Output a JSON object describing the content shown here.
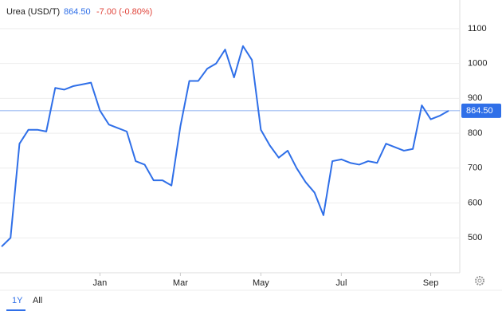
{
  "chart_data": {
    "type": "line",
    "title": "Urea (USD/T)",
    "price": {
      "value": 864.5,
      "label": "864.50"
    },
    "change": "-7.00 (-0.80%)",
    "ranges": [
      "1Y",
      "All"
    ],
    "categories": [
      null,
      null,
      null,
      null,
      null,
      null,
      null,
      null,
      null,
      null,
      null,
      "Jan",
      null,
      null,
      null,
      null,
      null,
      null,
      null,
      null,
      "Mar",
      null,
      null,
      null,
      null,
      null,
      null,
      null,
      null,
      "May",
      null,
      null,
      null,
      null,
      null,
      null,
      null,
      null,
      "Jul",
      null,
      null,
      null,
      null,
      null,
      null,
      null,
      null,
      null,
      "Sep",
      null,
      null
    ],
    "series": [
      {
        "name": "Urea",
        "color": "#2f6fe8",
        "values": [
          475,
          500,
          770,
          810,
          810,
          805,
          930,
          925,
          935,
          940,
          945,
          865,
          825,
          815,
          805,
          720,
          710,
          665,
          665,
          650,
          820,
          950,
          950,
          985,
          1000,
          1040,
          960,
          1050,
          1010,
          810,
          765,
          730,
          750,
          700,
          660,
          630,
          565,
          720,
          725,
          715,
          710,
          720,
          715,
          770,
          760,
          750,
          755,
          880,
          840,
          850,
          864.5
        ]
      }
    ],
    "ylim": [
      400,
      1150
    ],
    "yticks": [
      500,
      600,
      700,
      800,
      900,
      1000,
      1100
    ],
    "grid": true
  }
}
